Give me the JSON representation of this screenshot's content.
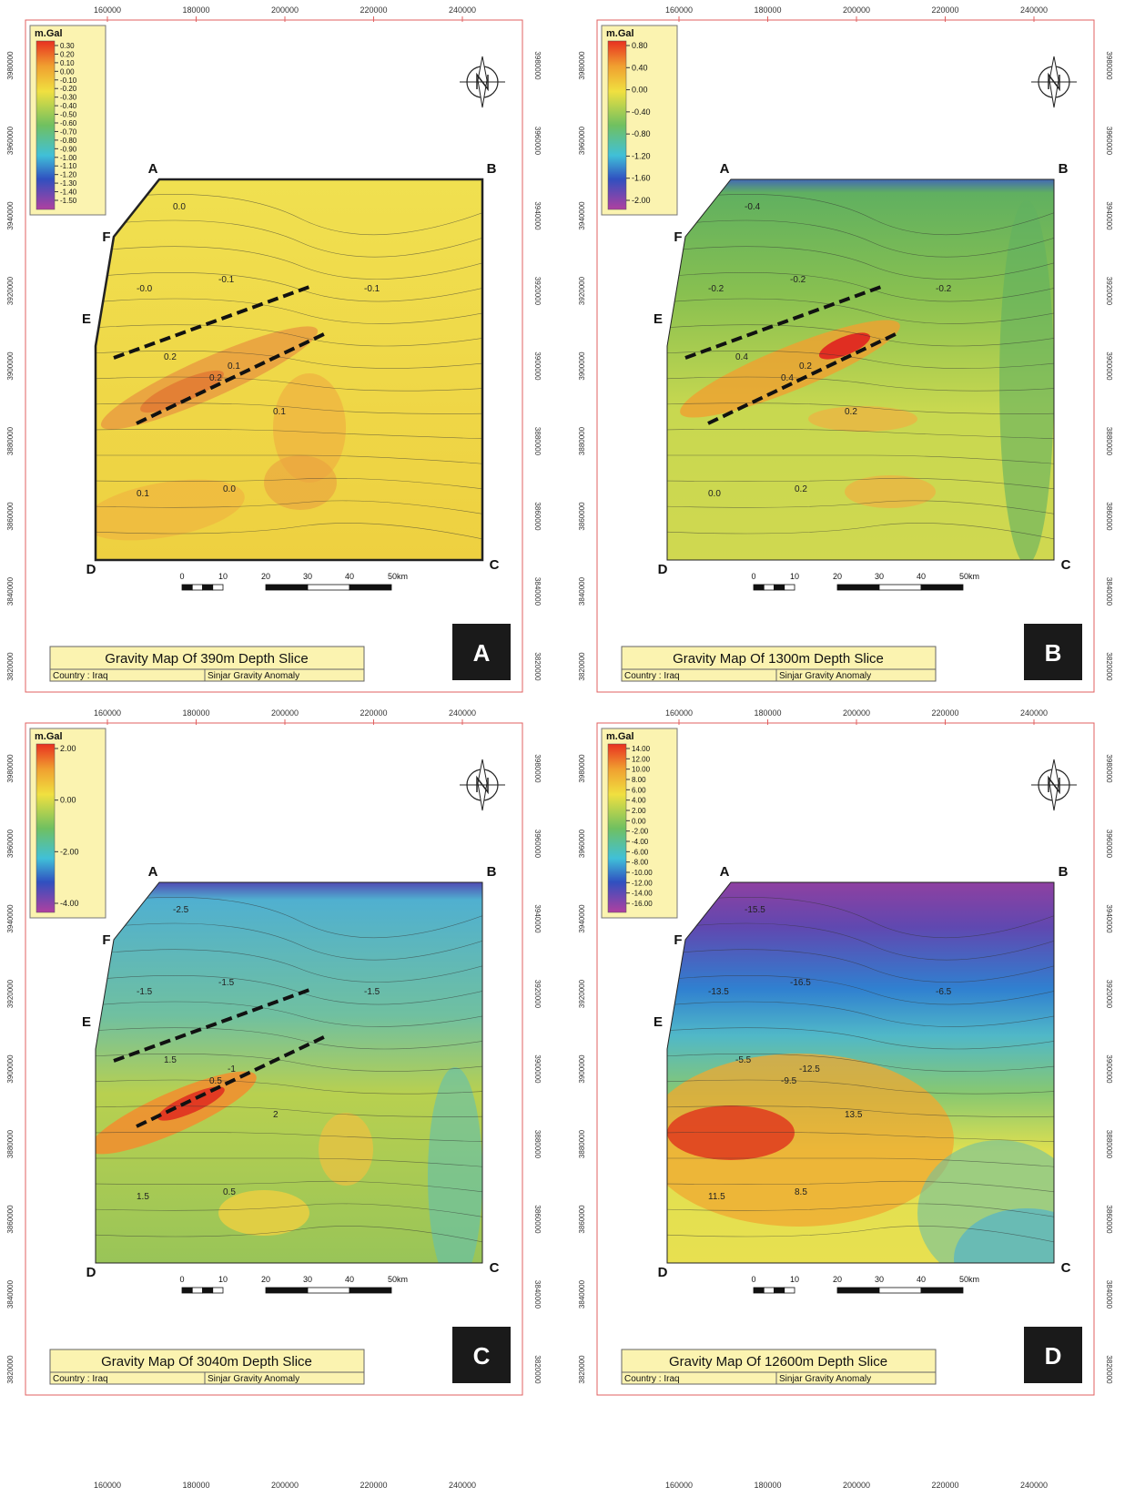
{
  "x_ticks": [
    "160000",
    "180000",
    "200000",
    "220000",
    "240000"
  ],
  "y_ticks": [
    "3980000",
    "3960000",
    "3940000",
    "3920000",
    "3900000",
    "3880000",
    "3860000",
    "3840000",
    "3820000"
  ],
  "unit": "m.Gal",
  "corners": [
    "A",
    "B",
    "C",
    "D",
    "E",
    "F"
  ],
  "scale_labels": [
    "0",
    "10",
    "20",
    "30",
    "40",
    "50km"
  ],
  "country": "Country : Iraq",
  "anomaly": "Sinjar Gravity Anomaly",
  "panels": [
    {
      "letter": "A",
      "title": "Gravity Map Of 390m Depth Slice",
      "legend_ticks": [
        "0.30",
        "0.20",
        "0.10",
        "0.00",
        "-0.10",
        "-0.20",
        "-0.30",
        "-0.40",
        "-0.50",
        "-0.60",
        "-0.70",
        "-0.80",
        "-0.90",
        "-1.00",
        "-1.10",
        "-1.20",
        "-1.30",
        "-1.40",
        "-1.50"
      ],
      "contour_labels": [
        "0.0",
        "-0.1",
        "-0.0",
        "0.1",
        "0.2",
        "0.2",
        "0.1",
        "0.1",
        "0.0",
        "-0.1"
      ]
    },
    {
      "letter": "B",
      "title": "Gravity Map Of 1300m Depth Slice",
      "legend_ticks": [
        "0.80",
        "0.40",
        "0.00",
        "-0.40",
        "-0.80",
        "-1.20",
        "-1.60",
        "-2.00"
      ],
      "contour_labels": [
        "-0.4",
        "-0.2",
        "-0.2",
        "0.2",
        "0.4",
        "0.4",
        "0.2",
        "0.0",
        "0.2",
        "-0.2"
      ]
    },
    {
      "letter": "C",
      "title": "Gravity Map Of 3040m Depth Slice",
      "legend_ticks": [
        "2.00",
        "0.00",
        "-2.00",
        "-4.00"
      ],
      "contour_labels": [
        "-2.5",
        "-1.5",
        "-1.5",
        "-1",
        "0.5",
        "1.5",
        "2",
        "1.5",
        "0.5",
        "-1.5"
      ]
    },
    {
      "letter": "D",
      "title": "Gravity Map Of 12600m Depth Slice",
      "legend_ticks": [
        "14.00",
        "12.00",
        "10.00",
        "8.00",
        "6.00",
        "4.00",
        "2.00",
        "0.00",
        "-2.00",
        "-4.00",
        "-6.00",
        "-8.00",
        "-10.00",
        "-12.00",
        "-14.00",
        "-16.00"
      ],
      "contour_labels": [
        "-15.5",
        "-16.5",
        "-13.5",
        "-12.5",
        "-9.5",
        "-5.5",
        "13.5",
        "11.5",
        "8.5",
        "-6.5"
      ]
    }
  ]
}
